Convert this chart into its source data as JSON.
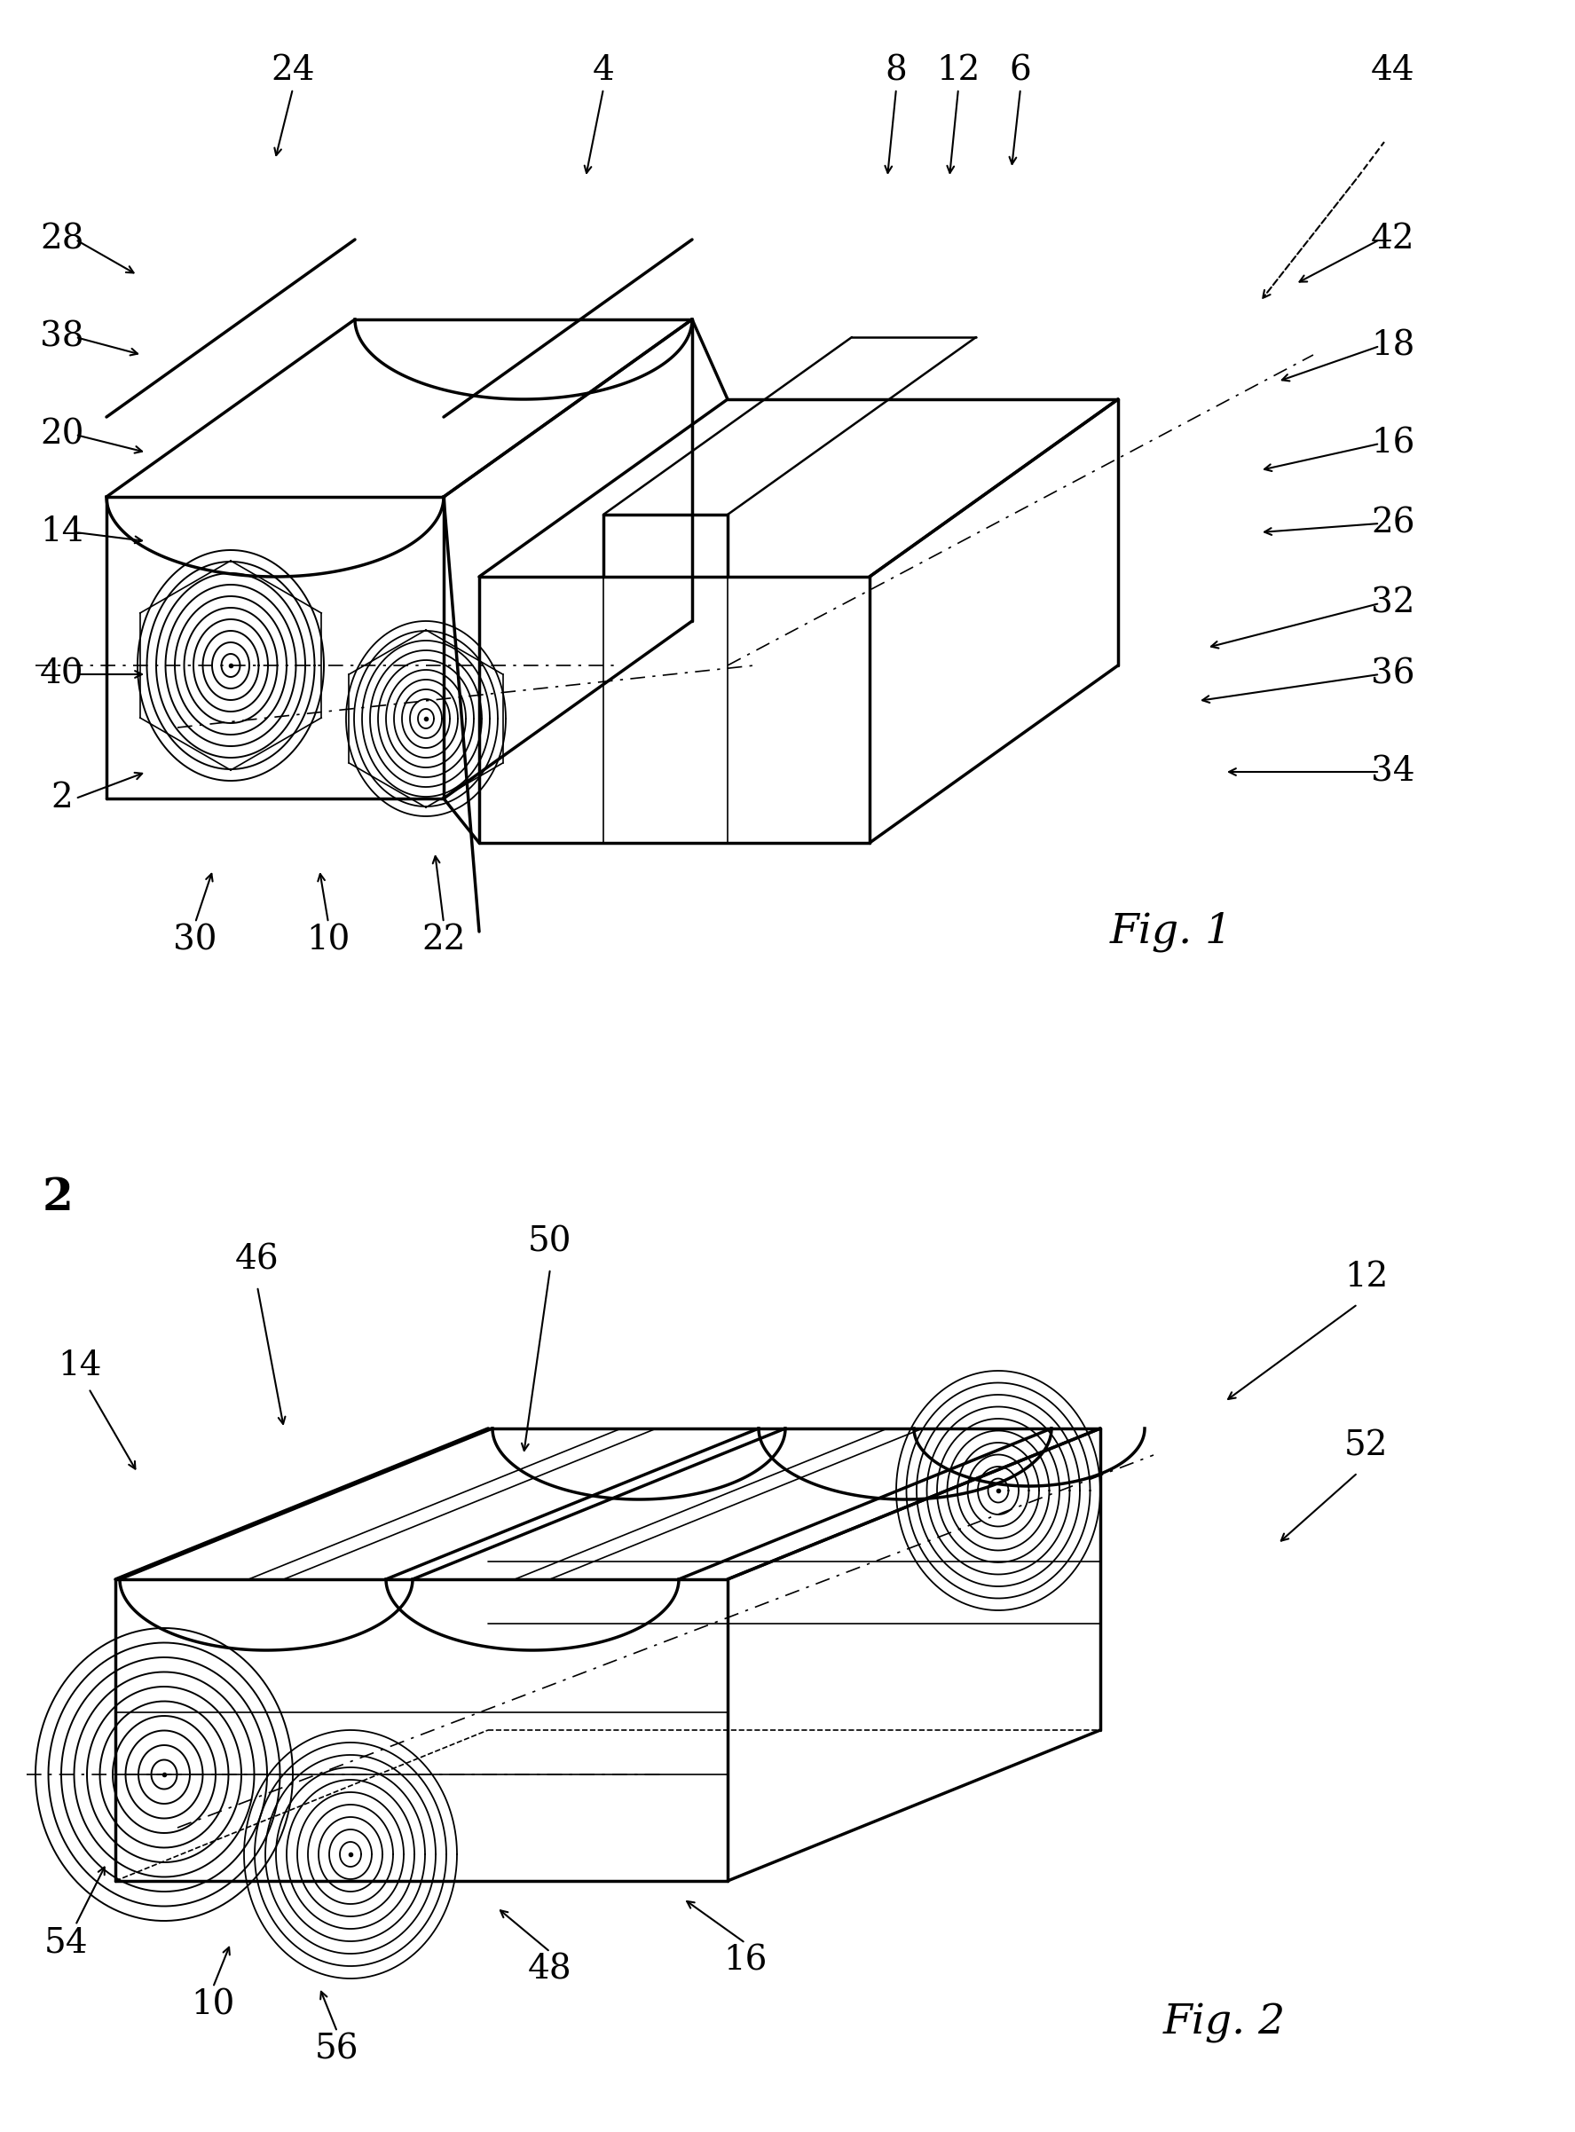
{
  "fig_width": 17.75,
  "fig_height": 24.03,
  "bg_color": "#ffffff",
  "line_color": "#000000",
  "fig1_label": "Fig. 1",
  "fig2_label": "Fig. 2",
  "fig2_marker": "2"
}
